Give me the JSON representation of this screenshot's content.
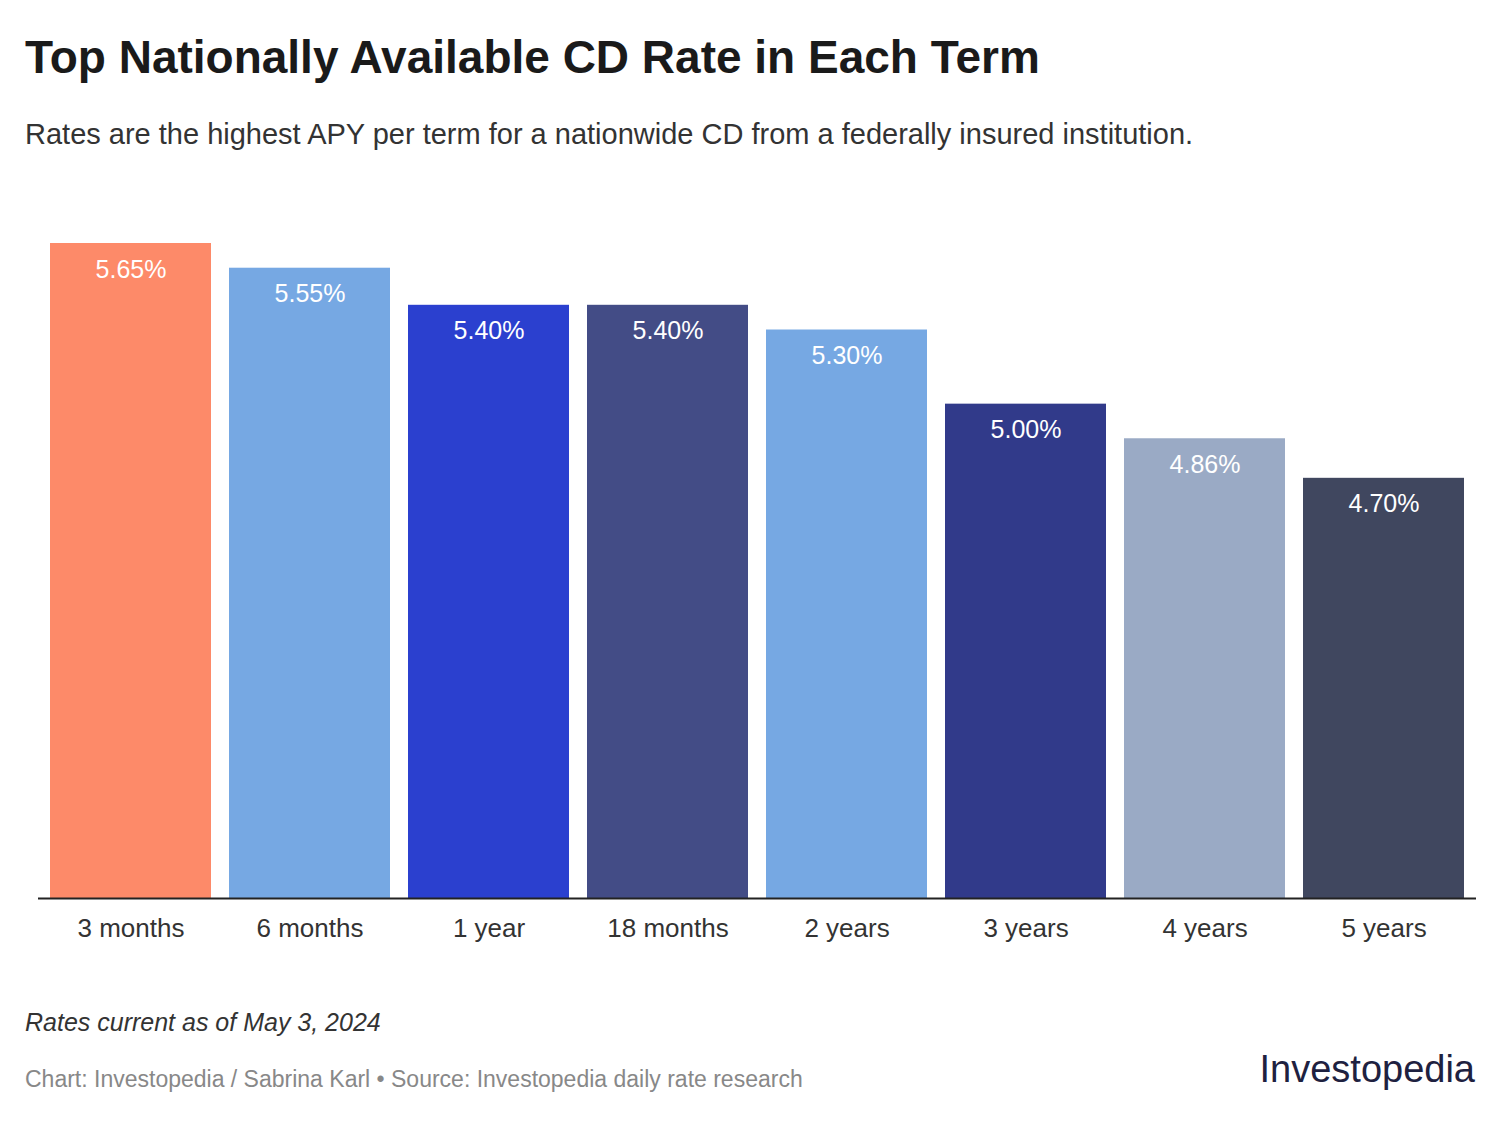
{
  "chart_data": {
    "type": "bar",
    "title": "Top Nationally Available CD Rate in Each Term",
    "subtitle": "Rates are the highest APY per term for a nationwide CD from a federally insured institution.",
    "caption": "Rates current as of May 3, 2024",
    "source": "Chart: Investopedia / Sabrina Karl • Source: Investopedia daily rate research",
    "brand": "Investopedia",
    "categories": [
      "3 months",
      "6 months",
      "1 year",
      "18 months",
      "2 years",
      "3 years",
      "4 years",
      "5 years"
    ],
    "values": [
      5.65,
      5.55,
      5.4,
      5.4,
      5.3,
      5.0,
      4.86,
      4.7
    ],
    "value_labels": [
      "5.65%",
      "5.55%",
      "5.40%",
      "5.40%",
      "5.30%",
      "5.00%",
      "4.86%",
      "4.70%"
    ],
    "colors": [
      "#fd8a69",
      "#76a8e3",
      "#2b40cf",
      "#434c86",
      "#76a8e3",
      "#313a8a",
      "#9aaac5",
      "#40475f"
    ],
    "ylim": [
      3,
      5.65
    ],
    "data_labels": true,
    "tick_labels": "x"
  }
}
